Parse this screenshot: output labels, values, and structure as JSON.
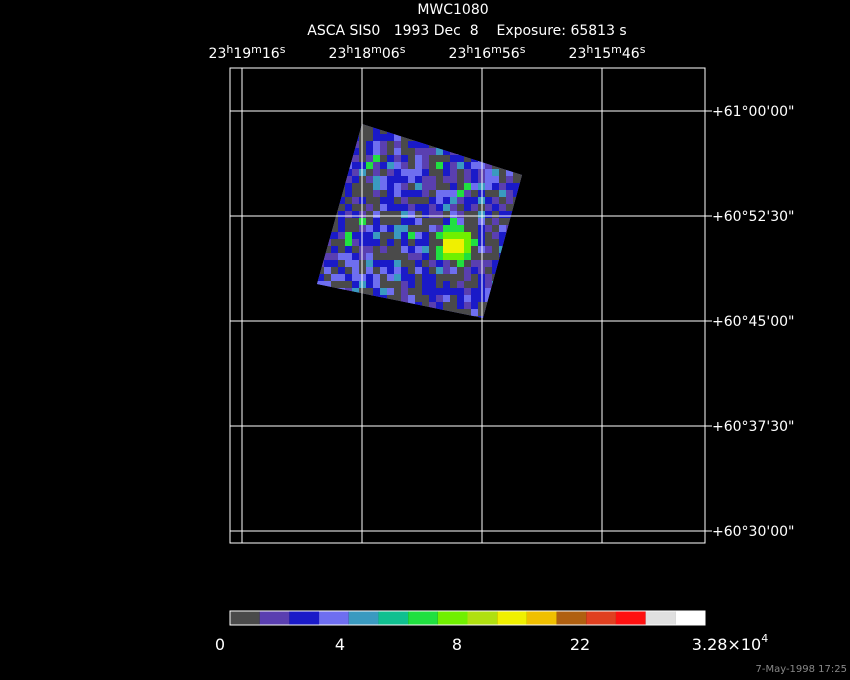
{
  "title": "MWC1080",
  "subtitle": "ASCA SIS0   1993 Dec  8    Exposure: 65813 s",
  "ra_labels": [
    {
      "h": "23",
      "hu": "h",
      "m": "19",
      "mu": "m",
      "s": "16",
      "su": "s"
    },
    {
      "h": "23",
      "hu": "h",
      "m": "18",
      "mu": "m",
      "s": "06",
      "su": "s"
    },
    {
      "h": "23",
      "hu": "h",
      "m": "16",
      "mu": "m",
      "s": "56",
      "su": "s"
    },
    {
      "h": "23",
      "hu": "h",
      "m": "15",
      "mu": "m",
      "s": "46",
      "su": "s"
    }
  ],
  "dec_labels": [
    "+61°00'00\"",
    "+60°52'30\"",
    "+60°45'00\"",
    "+60°37'30\"",
    "+60°30'00\""
  ],
  "colorbar": {
    "colors": [
      "#4a4a4a",
      "#5a3fb0",
      "#1a1ac8",
      "#6e6ef0",
      "#3a9ac0",
      "#10c090",
      "#20e040",
      "#70f000",
      "#b0e010",
      "#f0f000",
      "#f0c000",
      "#b06010",
      "#e04020",
      "#ff1010",
      "#e0e0e0",
      "#ffffff"
    ],
    "labels": [
      {
        "text": "0"
      },
      {
        "text": "4"
      },
      {
        "text": "8"
      },
      {
        "text": "22"
      },
      {
        "text": "3.28×10",
        "sup": "4"
      }
    ]
  },
  "footer": "7-May-1998 17:25"
}
